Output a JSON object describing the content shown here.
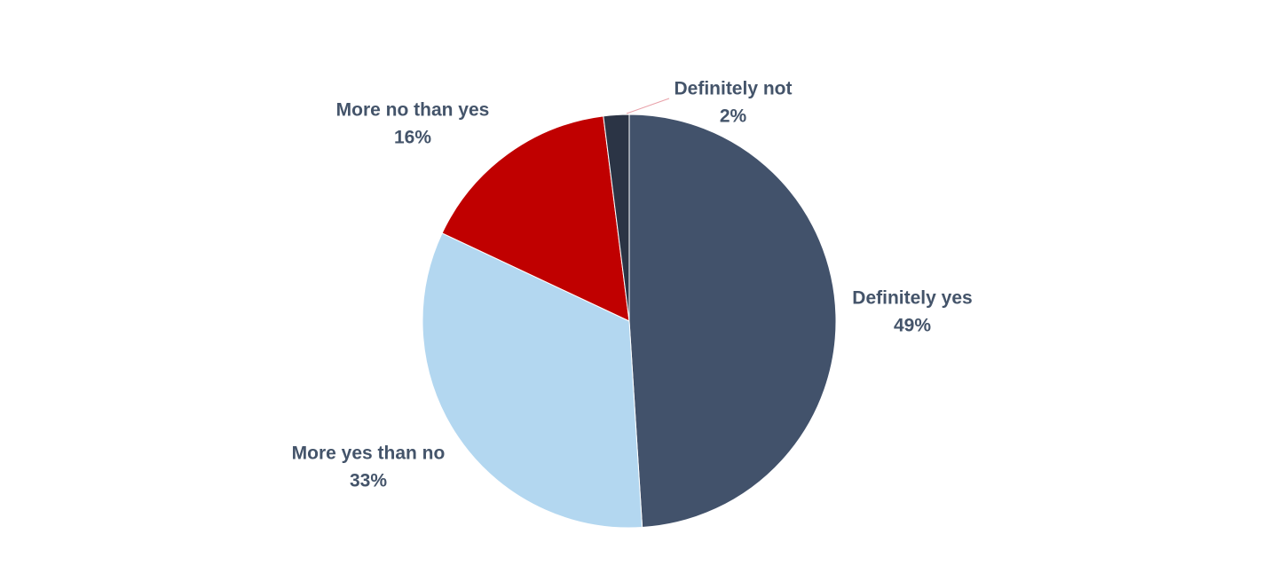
{
  "chart_data": {
    "type": "pie",
    "categories": [
      "Definitely yes",
      "More yes than no",
      "More no than yes",
      "Definitely not"
    ],
    "values": [
      49,
      33,
      16,
      2
    ],
    "value_labels": [
      "49%",
      "33%",
      "16%",
      "2%"
    ],
    "colors": [
      "#42526b",
      "#b3d7f0",
      "#c00000",
      "#2b3445"
    ]
  }
}
